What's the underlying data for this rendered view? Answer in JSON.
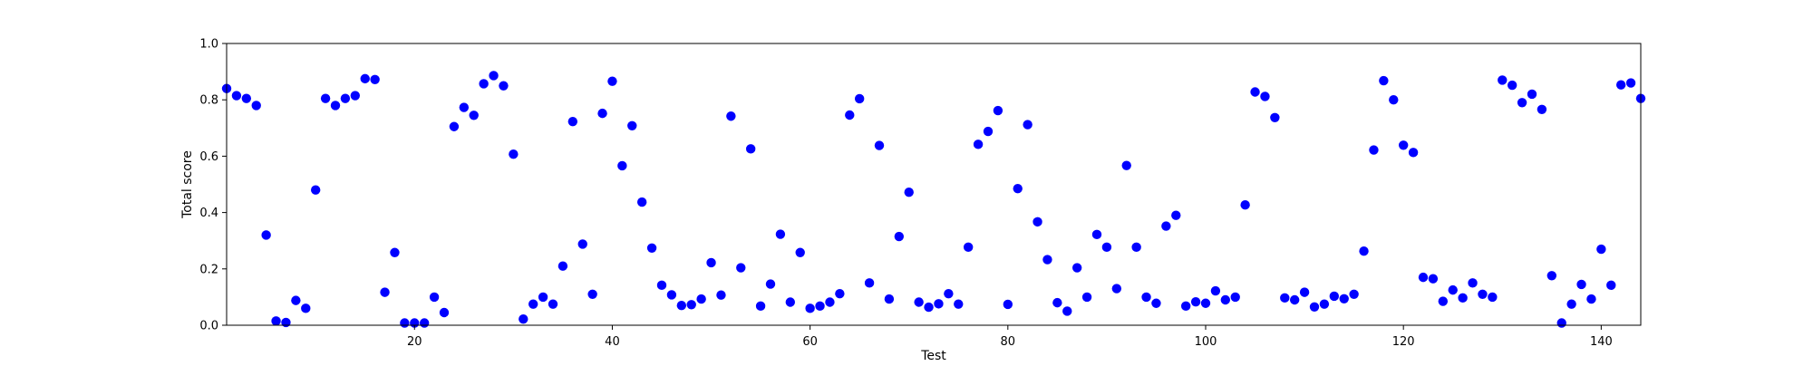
{
  "chart_data": {
    "type": "scatter",
    "title": "",
    "xlabel": "Test",
    "ylabel": "Total score",
    "xlim": [
      1,
      144
    ],
    "ylim": [
      0,
      1
    ],
    "x_ticks": [
      20,
      40,
      60,
      80,
      100,
      120,
      140
    ],
    "y_ticks": [
      "0.0",
      "0.2",
      "0.4",
      "0.6",
      "0.8",
      "1.0"
    ],
    "grid": false,
    "legend": "none",
    "marker_color": "#0000ff",
    "series": [
      {
        "x": [
          1,
          2,
          3,
          4,
          5,
          6,
          7,
          8,
          9,
          10,
          11,
          12,
          13,
          14,
          15,
          16,
          17,
          18,
          19,
          20,
          21,
          22,
          23,
          24,
          25,
          26,
          27,
          28,
          29,
          30,
          31,
          32,
          33,
          34,
          35,
          36,
          37,
          38,
          39,
          40,
          41,
          42,
          43,
          44,
          45,
          46,
          47,
          48,
          49,
          50,
          51,
          52,
          53,
          54,
          55,
          56,
          57,
          58,
          59,
          60,
          61,
          62,
          63,
          64,
          65,
          66,
          67,
          68,
          69,
          70,
          71,
          72,
          73,
          74,
          75,
          76,
          77,
          78,
          79,
          80,
          81,
          82,
          83,
          84,
          85,
          86,
          87,
          88,
          89,
          90,
          91,
          92,
          93,
          94,
          95,
          96,
          97,
          98,
          99,
          100,
          101,
          102,
          103,
          104,
          105,
          106,
          107,
          108,
          109,
          110,
          111,
          112,
          113,
          114,
          115,
          116,
          117,
          118,
          119,
          120,
          121,
          122,
          123,
          124,
          125,
          126,
          127,
          128,
          129,
          130,
          131,
          132,
          133,
          134,
          135,
          136,
          137,
          138,
          139,
          140,
          141,
          142,
          143,
          144
        ],
        "y": [
          0.84,
          0.815,
          0.805,
          0.78,
          0.32,
          0.015,
          0.01,
          0.088,
          0.06,
          0.48,
          0.805,
          0.78,
          0.805,
          0.815,
          0.875,
          0.872,
          0.117,
          0.258,
          0.008,
          0.008,
          0.008,
          0.1,
          0.045,
          0.705,
          0.773,
          0.745,
          0.857,
          0.886,
          0.85,
          0.607,
          0.022,
          0.075,
          0.1,
          0.075,
          0.21,
          0.723,
          0.288,
          0.11,
          0.752,
          0.866,
          0.566,
          0.708,
          0.437,
          0.274,
          0.142,
          0.108,
          0.07,
          0.073,
          0.093,
          0.222,
          0.107,
          0.742,
          0.204,
          0.626,
          0.068,
          0.146,
          0.323,
          0.082,
          0.258,
          0.06,
          0.068,
          0.082,
          0.112,
          0.746,
          0.804,
          0.15,
          0.638,
          0.093,
          0.315,
          0.472,
          0.082,
          0.064,
          0.076,
          0.112,
          0.075,
          0.277,
          0.642,
          0.688,
          0.762,
          0.074,
          0.485,
          0.712,
          0.367,
          0.233,
          0.08,
          0.05,
          0.204,
          0.1,
          0.322,
          0.277,
          0.13,
          0.567,
          0.277,
          0.1,
          0.078,
          0.352,
          0.39,
          0.068,
          0.083,
          0.078,
          0.122,
          0.09,
          0.1,
          0.427,
          0.828,
          0.812,
          0.737,
          0.097,
          0.09,
          0.117,
          0.065,
          0.075,
          0.103,
          0.094,
          0.11,
          0.263,
          0.622,
          0.868,
          0.8,
          0.639,
          0.613,
          0.17,
          0.165,
          0.085,
          0.125,
          0.097,
          0.15,
          0.11,
          0.1,
          0.87,
          0.852,
          0.79,
          0.82,
          0.766,
          0.176,
          0.008,
          0.075,
          0.145,
          0.093,
          0.27,
          0.142,
          0.853,
          0.86,
          0.805
        ]
      }
    ]
  }
}
